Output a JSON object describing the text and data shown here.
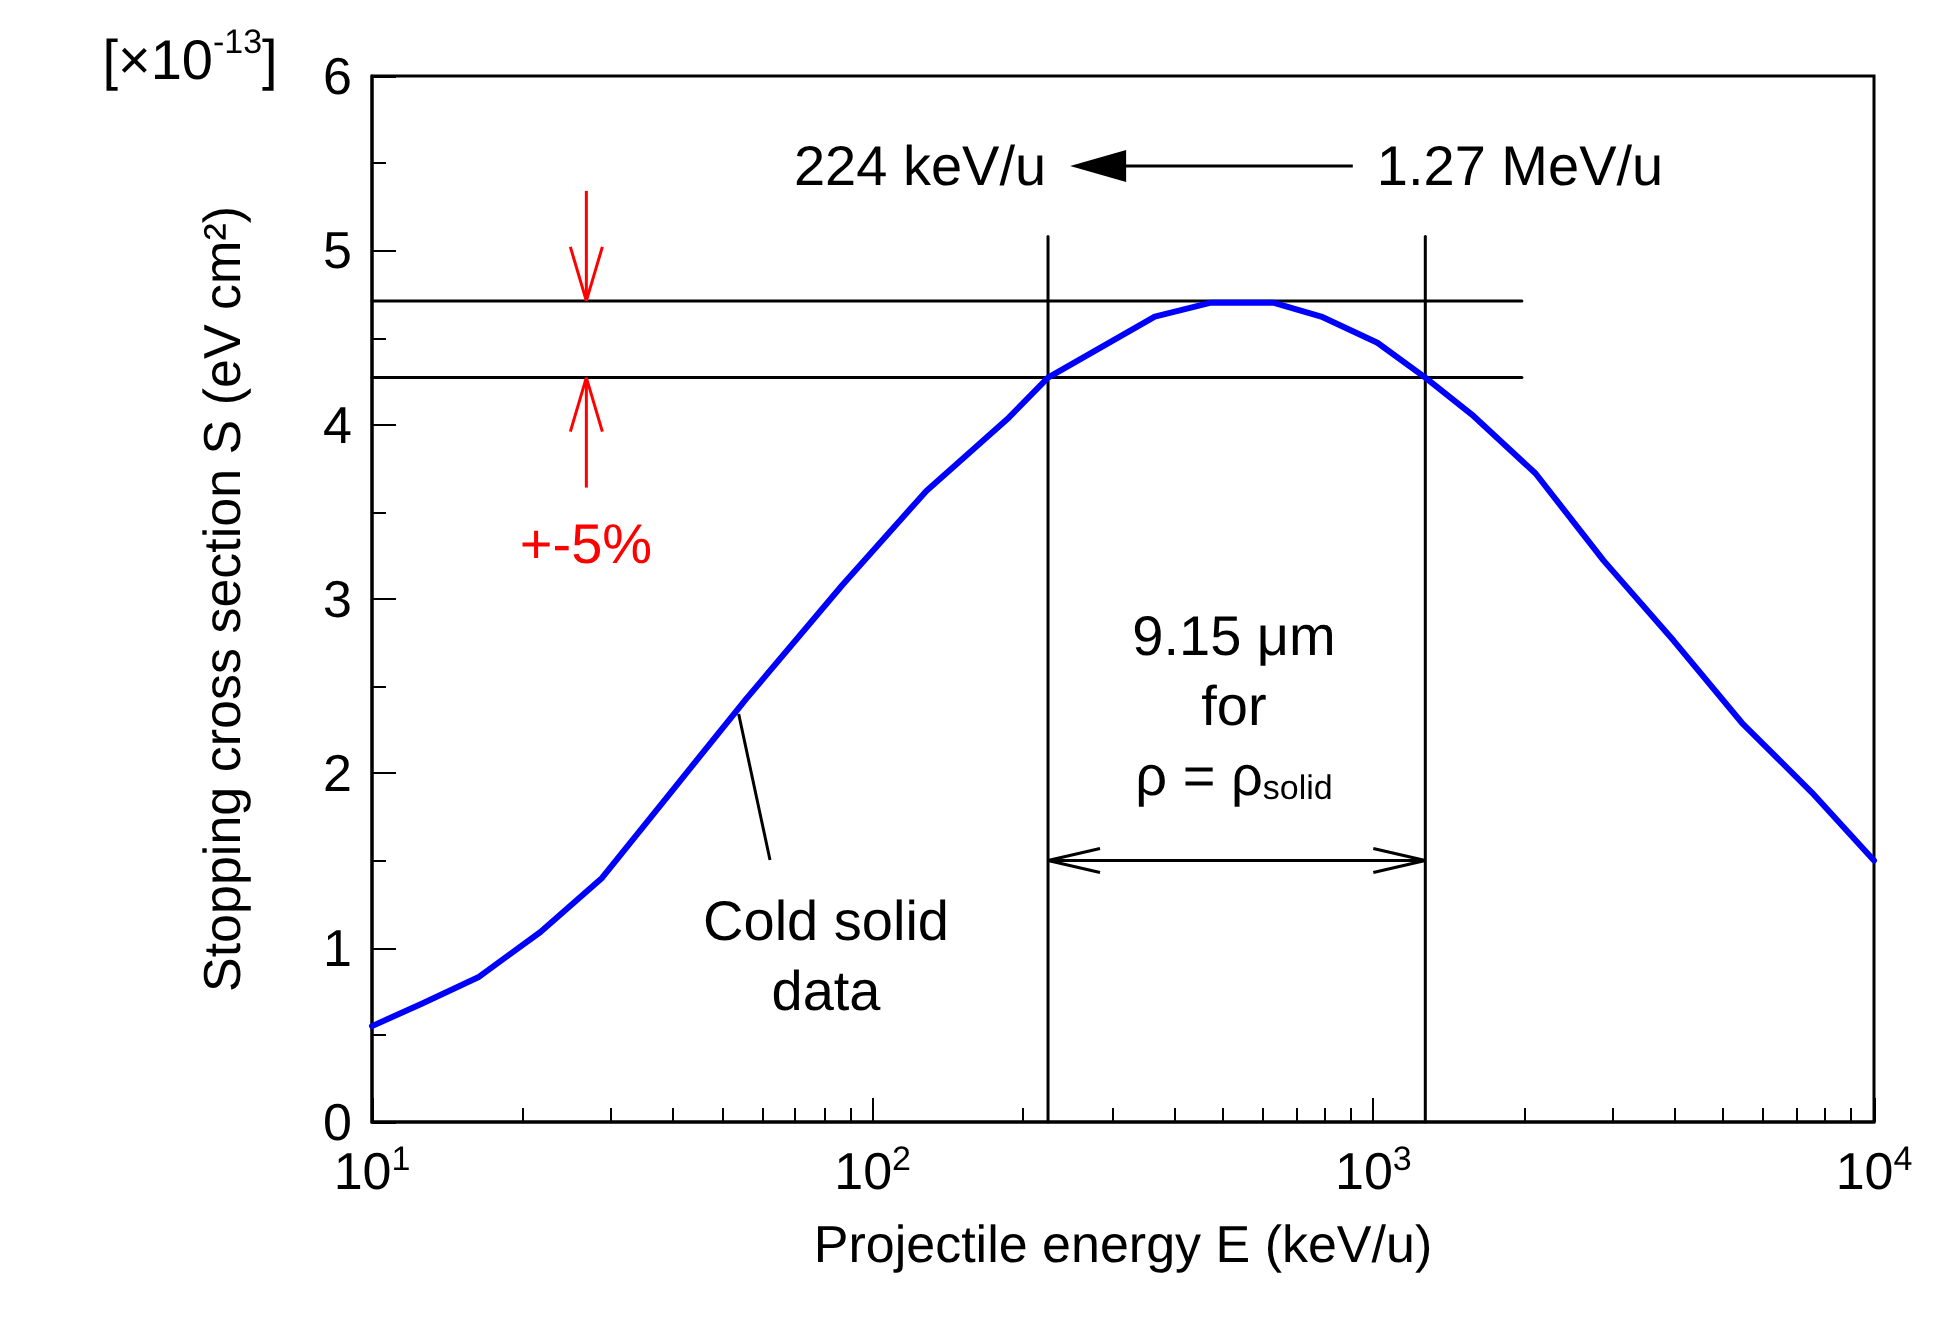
{
  "chart_data": {
    "type": "line",
    "xlabel": "Projectile energy E (keV/u)",
    "ylabel": "Stopping cross section S (eV cm²)",
    "log": "x",
    "xlim": [
      10,
      10000
    ],
    "xticks": [
      {
        "value": 10,
        "label": "10$^{1}$"
      },
      {
        "value": 100,
        "label": "10$^{2}$"
      },
      {
        "value": 1000,
        "label": "10$^{3}$"
      },
      {
        "value": 10000,
        "label": "10$^{4}$"
      }
    ],
    "ylim": [
      0,
      6
    ],
    "yticks": [
      0,
      1,
      2,
      3,
      4,
      5,
      6
    ],
    "grid": false,
    "marker": "none",
    "line_style": "solid",
    "series": [
      {
        "color": "#0000ff",
        "x": [
          10,
          12.6,
          16.3,
          21.7,
          28.8,
          39.5,
          56,
          87,
          128,
          187,
          224,
          366,
          474,
          631,
          787,
          1019,
          1270,
          1585,
          2109,
          2884,
          3981,
          5445,
          7516,
          10000
        ],
        "values": [
          0.55,
          0.68,
          0.83,
          1.09,
          1.4,
          1.89,
          2.43,
          3.08,
          3.62,
          4.04,
          4.27,
          4.62,
          4.7,
          4.7,
          4.62,
          4.47,
          4.27,
          4.05,
          3.72,
          3.22,
          2.76,
          2.29,
          1.89,
          1.5
        ]
      },
      {
        "color": "#000000",
        "x": [
          10,
          1980
        ],
        "values": [
          4.71,
          4.71
        ]
      },
      {
        "color": "#000000",
        "x": [
          10,
          1980
        ],
        "values": [
          4.27,
          4.27
        ]
      },
      {
        "color": "#000000",
        "x": [
          224,
          224
        ],
        "values": [
          0,
          5.08
        ]
      },
      {
        "color": "#000000",
        "x": [
          1270,
          1270
        ],
        "values": [
          0,
          5.08
        ]
      }
    ],
    "annotations": [
      "224 keV/u",
      "1.27 MeV/u",
      {
        "text": "9.15 μm\nfor\nρ = ρ$_{solid}$",
        "x": 224,
        "y": 1.5
      },
      {
        "text": "+-5%",
        "x": 26.8,
        "y": 4.27
      },
      {
        "text": "Cold solid\ndata",
        "x": 54,
        "y": 2.34
      },
      "[×10$^{-13}$]"
    ]
  }
}
